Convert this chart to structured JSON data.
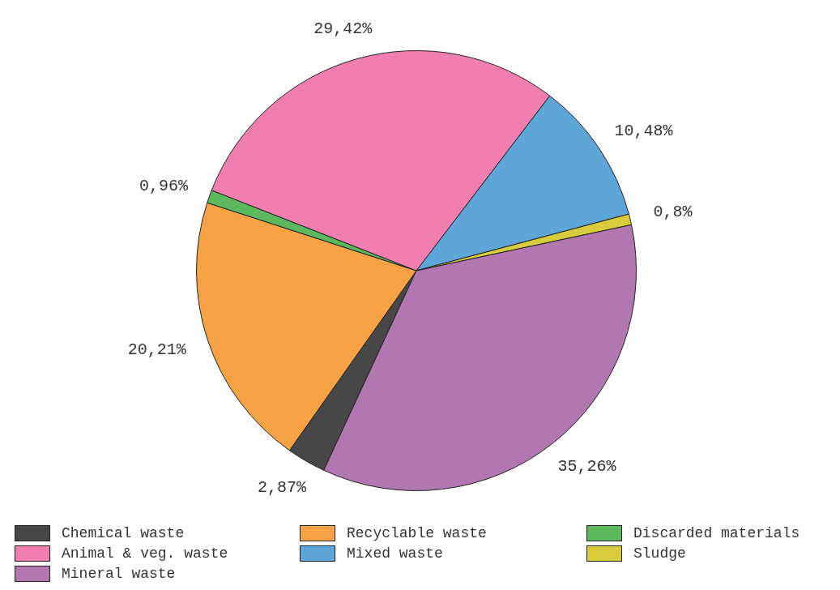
{
  "chart_data": {
    "type": "pie",
    "categories": [
      "Chemical waste",
      "Recyclable waste",
      "Discarded materials",
      "Animal & veg. waste",
      "Mixed waste",
      "Sludge",
      "Mineral waste"
    ],
    "values": [
      2.87,
      20.21,
      0.96,
      29.42,
      10.48,
      0.8,
      35.26
    ],
    "colors": [
      "#474747",
      "#f7a345",
      "#5cb85c",
      "#f07fb0",
      "#5fa6d8",
      "#d9cc3c",
      "#b077b0"
    ],
    "value_labels": [
      "2,87%",
      "20,21%",
      "0,96%",
      "29,42%",
      "10,48%",
      "0,8%",
      "35,26%"
    ],
    "legend": "bottom"
  }
}
